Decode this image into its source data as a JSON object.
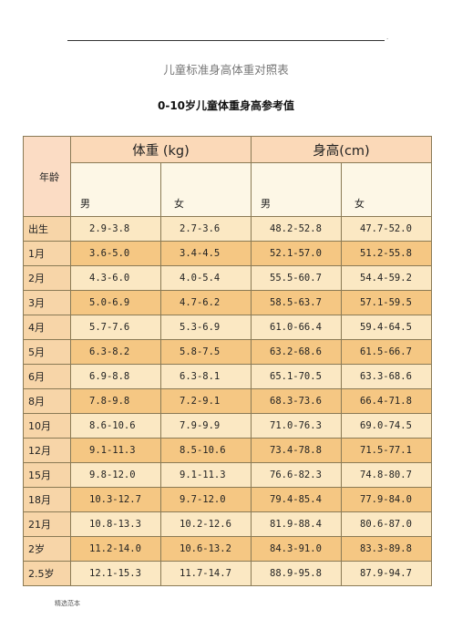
{
  "header": {
    "corner_mark": "."
  },
  "title": "儿童标准身高体重对照表",
  "subtitle": "0-10岁儿童体重身高参考值",
  "table": {
    "age_header": "年龄",
    "weight_header": "体重 (kg)",
    "height_header": "身高(cm)",
    "male_label": "男",
    "female_label": "女",
    "rows": [
      {
        "age": "出生",
        "w_m": "2.9-3.8",
        "w_f": "2.7-3.6",
        "h_m": "48.2-52.8",
        "h_f": "47.7-52.0"
      },
      {
        "age": "1月",
        "w_m": "3.6-5.0",
        "w_f": "3.4-4.5",
        "h_m": "52.1-57.0",
        "h_f": "51.2-55.8"
      },
      {
        "age": "2月",
        "w_m": "4.3-6.0",
        "w_f": "4.0-5.4",
        "h_m": "55.5-60.7",
        "h_f": "54.4-59.2"
      },
      {
        "age": "3月",
        "w_m": "5.0-6.9",
        "w_f": "4.7-6.2",
        "h_m": "58.5-63.7",
        "h_f": "57.1-59.5"
      },
      {
        "age": "4月",
        "w_m": "5.7-7.6",
        "w_f": "5.3-6.9",
        "h_m": "61.0-66.4",
        "h_f": "59.4-64.5"
      },
      {
        "age": "5月",
        "w_m": "6.3-8.2",
        "w_f": "5.8-7.5",
        "h_m": "63.2-68.6",
        "h_f": "61.5-66.7"
      },
      {
        "age": "6月",
        "w_m": "6.9-8.8",
        "w_f": "6.3-8.1",
        "h_m": "65.1-70.5",
        "h_f": "63.3-68.6"
      },
      {
        "age": "8月",
        "w_m": "7.8-9.8",
        "w_f": "7.2-9.1",
        "h_m": "68.3-73.6",
        "h_f": "66.4-71.8"
      },
      {
        "age": "10月",
        "w_m": "8.6-10.6",
        "w_f": "7.9-9.9",
        "h_m": "71.0-76.3",
        "h_f": "69.0-74.5"
      },
      {
        "age": "12月",
        "w_m": "9.1-11.3",
        "w_f": "8.5-10.6",
        "h_m": "73.4-78.8",
        "h_f": "71.5-77.1"
      },
      {
        "age": "15月",
        "w_m": "9.8-12.0",
        "w_f": "9.1-11.3",
        "h_m": "76.6-82.3",
        "h_f": "74.8-80.7"
      },
      {
        "age": "18月",
        "w_m": "10.3-12.7",
        "w_f": "9.7-12.0",
        "h_m": "79.4-85.4",
        "h_f": "77.9-84.0"
      },
      {
        "age": "21月",
        "w_m": "10.8-13.3",
        "w_f": "10.2-12.6",
        "h_m": "81.9-88.4",
        "h_f": "80.6-87.0"
      },
      {
        "age": "2岁",
        "w_m": "11.2-14.0",
        "w_f": "10.6-13.2",
        "h_m": "84.3-91.0",
        "h_f": "83.3-89.8"
      },
      {
        "age": "2.5岁",
        "w_m": "12.1-15.3",
        "w_f": "11.7-14.7",
        "h_m": "88.9-95.8",
        "h_f": "87.9-94.7"
      }
    ]
  },
  "footer": "精选范本",
  "colors": {
    "header_fill": "#fbd9b8",
    "subheader_fill": "#fdf7e6",
    "row_light": "#fbe8c3",
    "row_dark": "#f5c783",
    "age_fill": "#f7d5a8",
    "border": "#8a7a55"
  }
}
